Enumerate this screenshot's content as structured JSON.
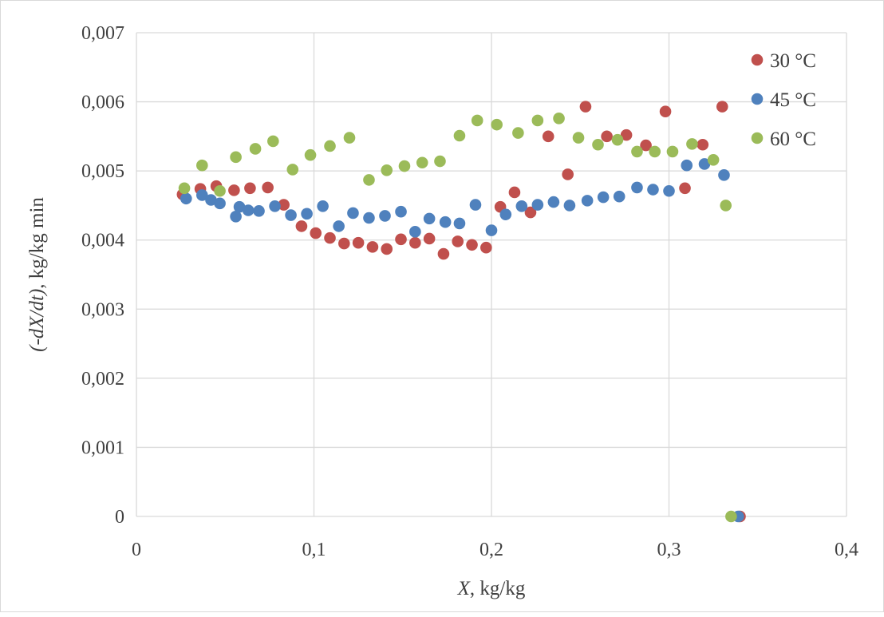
{
  "chart_data": {
    "type": "scatter",
    "title": "",
    "xlabel": "X, kg/kg",
    "xlabel_parts": [
      {
        "text": "X",
        "italic": true
      },
      {
        "text": ", kg/kg",
        "italic": false
      }
    ],
    "ylabel": "(-dX/dt), kg/kg min",
    "ylabel_parts": [
      {
        "text": "(-",
        "italic": true
      },
      {
        "text": "dX",
        "italic": true
      },
      {
        "text": "/",
        "italic": true
      },
      {
        "text": "dt",
        "italic": true
      },
      {
        "text": ")",
        "italic": true
      },
      {
        "text": ", kg/kg min",
        "italic": false
      }
    ],
    "xlim": [
      0,
      0.4
    ],
    "ylim": [
      0,
      0.007
    ],
    "x_ticks": [
      0,
      0.1,
      0.2,
      0.3,
      0.4
    ],
    "x_tick_labels": [
      "0",
      "0,1",
      "0,2",
      "0,3",
      "0,4"
    ],
    "y_ticks": [
      0,
      0.001,
      0.002,
      0.003,
      0.004,
      0.005,
      0.006,
      0.007
    ],
    "y_tick_labels": [
      "0",
      "0,001",
      "0,002",
      "0,003",
      "0,004",
      "0,005",
      "0,006",
      "0,007"
    ],
    "grid": true,
    "legend_position": "top-right",
    "series": [
      {
        "name": "30 °C",
        "color": "#c0504d",
        "points": [
          [
            0.026,
            0.00466
          ],
          [
            0.036,
            0.00474
          ],
          [
            0.045,
            0.00478
          ],
          [
            0.055,
            0.00472
          ],
          [
            0.064,
            0.00475
          ],
          [
            0.074,
            0.00476
          ],
          [
            0.083,
            0.00451
          ],
          [
            0.093,
            0.0042
          ],
          [
            0.101,
            0.0041
          ],
          [
            0.109,
            0.00403
          ],
          [
            0.117,
            0.00395
          ],
          [
            0.125,
            0.00396
          ],
          [
            0.133,
            0.0039
          ],
          [
            0.141,
            0.00387
          ],
          [
            0.149,
            0.00401
          ],
          [
            0.157,
            0.00396
          ],
          [
            0.165,
            0.00402
          ],
          [
            0.173,
            0.0038
          ],
          [
            0.181,
            0.00398
          ],
          [
            0.189,
            0.00393
          ],
          [
            0.197,
            0.00389
          ],
          [
            0.205,
            0.00448
          ],
          [
            0.213,
            0.00469
          ],
          [
            0.222,
            0.0044
          ],
          [
            0.232,
            0.0055
          ],
          [
            0.243,
            0.00495
          ],
          [
            0.253,
            0.00593
          ],
          [
            0.265,
            0.0055
          ],
          [
            0.276,
            0.00552
          ],
          [
            0.287,
            0.00537
          ],
          [
            0.298,
            0.00586
          ],
          [
            0.309,
            0.00475
          ],
          [
            0.319,
            0.00538
          ],
          [
            0.33,
            0.00593
          ],
          [
            0.34,
            0.0
          ]
        ]
      },
      {
        "name": "45 °C",
        "color": "#4f81bd",
        "points": [
          [
            0.028,
            0.0046
          ],
          [
            0.037,
            0.00465
          ],
          [
            0.042,
            0.00458
          ],
          [
            0.047,
            0.00453
          ],
          [
            0.056,
            0.00434
          ],
          [
            0.058,
            0.00448
          ],
          [
            0.063,
            0.00443
          ],
          [
            0.069,
            0.00442
          ],
          [
            0.078,
            0.00449
          ],
          [
            0.087,
            0.00436
          ],
          [
            0.096,
            0.00438
          ],
          [
            0.105,
            0.00449
          ],
          [
            0.114,
            0.0042
          ],
          [
            0.122,
            0.00439
          ],
          [
            0.131,
            0.00432
          ],
          [
            0.14,
            0.00435
          ],
          [
            0.149,
            0.00441
          ],
          [
            0.157,
            0.00412
          ],
          [
            0.165,
            0.00431
          ],
          [
            0.174,
            0.00426
          ],
          [
            0.182,
            0.00424
          ],
          [
            0.191,
            0.00451
          ],
          [
            0.2,
            0.00414
          ],
          [
            0.208,
            0.00437
          ],
          [
            0.217,
            0.00449
          ],
          [
            0.226,
            0.00451
          ],
          [
            0.235,
            0.00455
          ],
          [
            0.244,
            0.0045
          ],
          [
            0.254,
            0.00457
          ],
          [
            0.263,
            0.00462
          ],
          [
            0.272,
            0.00463
          ],
          [
            0.282,
            0.00476
          ],
          [
            0.291,
            0.00473
          ],
          [
            0.3,
            0.00471
          ],
          [
            0.31,
            0.00508
          ],
          [
            0.32,
            0.0051
          ],
          [
            0.331,
            0.00494
          ],
          [
            0.339,
            0.0
          ]
        ]
      },
      {
        "name": "60 °C",
        "color": "#9bbb59",
        "points": [
          [
            0.027,
            0.00475
          ],
          [
            0.037,
            0.00508
          ],
          [
            0.047,
            0.00471
          ],
          [
            0.056,
            0.0052
          ],
          [
            0.067,
            0.00532
          ],
          [
            0.077,
            0.00543
          ],
          [
            0.088,
            0.00502
          ],
          [
            0.098,
            0.00523
          ],
          [
            0.109,
            0.00536
          ],
          [
            0.12,
            0.00548
          ],
          [
            0.131,
            0.00487
          ],
          [
            0.141,
            0.00501
          ],
          [
            0.151,
            0.00507
          ],
          [
            0.161,
            0.00512
          ],
          [
            0.171,
            0.00514
          ],
          [
            0.182,
            0.00551
          ],
          [
            0.192,
            0.00573
          ],
          [
            0.203,
            0.00567
          ],
          [
            0.215,
            0.00555
          ],
          [
            0.226,
            0.00573
          ],
          [
            0.238,
            0.00576
          ],
          [
            0.249,
            0.00548
          ],
          [
            0.26,
            0.00538
          ],
          [
            0.271,
            0.00545
          ],
          [
            0.282,
            0.00528
          ],
          [
            0.292,
            0.00528
          ],
          [
            0.302,
            0.00528
          ],
          [
            0.313,
            0.00539
          ],
          [
            0.325,
            0.00516
          ],
          [
            0.332,
            0.0045
          ],
          [
            0.335,
            0.0
          ]
        ]
      }
    ]
  }
}
